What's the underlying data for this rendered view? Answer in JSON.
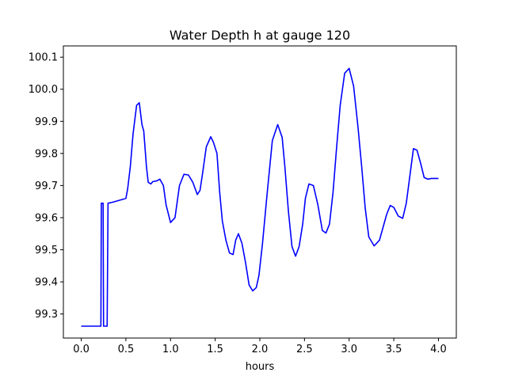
{
  "chart_data": {
    "type": "line",
    "title": "Water Depth h at gauge 120",
    "xlabel": "hours",
    "ylabel": "",
    "xlim": [
      -0.2,
      4.2
    ],
    "ylim": [
      99.225,
      100.135
    ],
    "xticks": [
      0.0,
      0.5,
      1.0,
      1.5,
      2.0,
      2.5,
      3.0,
      3.5,
      4.0
    ],
    "xtick_labels": [
      "0.0",
      "0.5",
      "1.0",
      "1.5",
      "2.0",
      "2.5",
      "3.0",
      "3.5",
      "4.0"
    ],
    "yticks": [
      99.3,
      99.4,
      99.5,
      99.6,
      99.7,
      99.8,
      99.9,
      100.0,
      100.1
    ],
    "ytick_labels": [
      "99.3",
      "99.4",
      "99.5",
      "99.6",
      "99.7",
      "99.8",
      "99.9",
      "100.0",
      "100.1"
    ],
    "grid": false,
    "series": [
      {
        "color": "#0000ff",
        "x": [
          0.0,
          0.1,
          0.2,
          0.22,
          0.225,
          0.245,
          0.25,
          0.29,
          0.3,
          0.35,
          0.4,
          0.45,
          0.5,
          0.52,
          0.55,
          0.58,
          0.62,
          0.65,
          0.68,
          0.7,
          0.73,
          0.75,
          0.78,
          0.8,
          0.85,
          0.88,
          0.92,
          0.95,
          1.0,
          1.05,
          1.1,
          1.15,
          1.2,
          1.25,
          1.3,
          1.33,
          1.36,
          1.4,
          1.45,
          1.48,
          1.52,
          1.55,
          1.58,
          1.62,
          1.66,
          1.7,
          1.73,
          1.76,
          1.8,
          1.84,
          1.88,
          1.92,
          1.96,
          1.99,
          2.03,
          2.08,
          2.14,
          2.2,
          2.25,
          2.28,
          2.32,
          2.36,
          2.4,
          2.44,
          2.48,
          2.51,
          2.55,
          2.6,
          2.65,
          2.7,
          2.74,
          2.78,
          2.82,
          2.86,
          2.9,
          2.95,
          3.0,
          3.05,
          3.1,
          3.14,
          3.18,
          3.22,
          3.28,
          3.34,
          3.38,
          3.42,
          3.46,
          3.5,
          3.55,
          3.6,
          3.64,
          3.68,
          3.72,
          3.76,
          3.8,
          3.84,
          3.88,
          3.92,
          3.95,
          3.98,
          4.0
        ],
        "y": [
          99.262,
          99.262,
          99.262,
          99.262,
          99.645,
          99.645,
          99.262,
          99.262,
          99.645,
          99.648,
          99.652,
          99.656,
          99.66,
          99.69,
          99.76,
          99.86,
          99.95,
          99.958,
          99.89,
          99.87,
          99.76,
          99.71,
          99.705,
          99.712,
          99.715,
          99.72,
          99.7,
          99.64,
          99.585,
          99.6,
          99.7,
          99.735,
          99.733,
          99.71,
          99.672,
          99.685,
          99.74,
          99.82,
          99.852,
          99.835,
          99.8,
          99.68,
          99.59,
          99.53,
          99.49,
          99.485,
          99.53,
          99.55,
          99.52,
          99.46,
          99.39,
          99.372,
          99.382,
          99.42,
          99.52,
          99.67,
          99.84,
          99.89,
          99.85,
          99.76,
          99.62,
          99.51,
          99.48,
          99.51,
          99.58,
          99.66,
          99.705,
          99.7,
          99.64,
          99.56,
          99.552,
          99.58,
          99.68,
          99.82,
          99.95,
          100.05,
          100.065,
          100.01,
          99.88,
          99.76,
          99.63,
          99.54,
          99.512,
          99.53,
          99.57,
          99.61,
          99.638,
          99.632,
          99.605,
          99.598,
          99.645,
          99.73,
          99.815,
          99.81,
          99.77,
          99.725,
          99.72,
          99.722,
          99.722,
          99.722,
          99.722
        ]
      }
    ]
  }
}
